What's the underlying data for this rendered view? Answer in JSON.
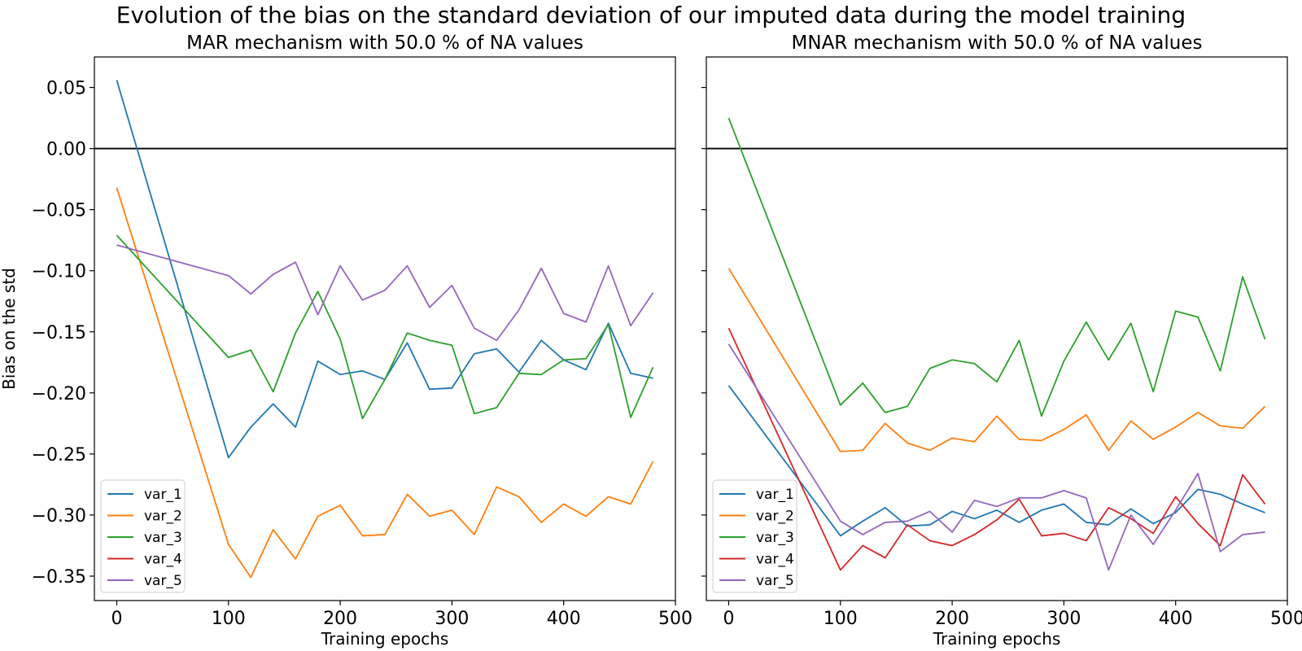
{
  "figure": {
    "suptitle": "Evolution of the bias on the standard deviation of our imputed data during the model training"
  },
  "colors": {
    "var_1": "#1f77b4",
    "var_2": "#ff7f0e",
    "var_3": "#2ca02c",
    "var_4": "#d62728",
    "var_5": "#9467bd",
    "zero_line": "#000000"
  },
  "chart_data": [
    {
      "type": "line",
      "title": "MAR mechanism with 50.0 % of NA values",
      "xlabel": "Training epochs",
      "ylabel": "Bias on the std",
      "xlim": [
        -20,
        500
      ],
      "ylim": [
        -0.37,
        0.075
      ],
      "xticks": [
        0,
        100,
        200,
        300,
        400,
        500
      ],
      "yticks": [
        0.05,
        0.0,
        -0.05,
        -0.1,
        -0.15,
        -0.2,
        -0.25,
        -0.3,
        -0.35
      ],
      "yticklabels": [
        "0.05",
        "0.00",
        "−0.05",
        "−0.10",
        "−0.15",
        "−0.20",
        "−0.25",
        "−0.30",
        "−0.35"
      ],
      "hline": 0.0,
      "grid": false,
      "legend": "lower-left",
      "series": [
        {
          "name": "var_1",
          "x": [
            0,
            100,
            120,
            140,
            160,
            180,
            200,
            220,
            240,
            260,
            280,
            300,
            320,
            340,
            360,
            380,
            400,
            420,
            440,
            460,
            480
          ],
          "values": [
            0.056,
            -0.253,
            -0.228,
            -0.209,
            -0.228,
            -0.174,
            -0.185,
            -0.182,
            -0.189,
            -0.159,
            -0.197,
            -0.196,
            -0.168,
            -0.164,
            -0.183,
            -0.157,
            -0.173,
            -0.181,
            -0.143,
            -0.184,
            -0.188
          ]
        },
        {
          "name": "var_2",
          "x": [
            0,
            100,
            120,
            140,
            160,
            180,
            200,
            220,
            240,
            260,
            280,
            300,
            320,
            340,
            360,
            380,
            400,
            420,
            440,
            460,
            480
          ],
          "values": [
            -0.032,
            -0.324,
            -0.351,
            -0.312,
            -0.336,
            -0.301,
            -0.292,
            -0.317,
            -0.316,
            -0.283,
            -0.301,
            -0.296,
            -0.316,
            -0.277,
            -0.285,
            -0.306,
            -0.291,
            -0.301,
            -0.285,
            -0.291,
            -0.256
          ]
        },
        {
          "name": "var_3",
          "x": [
            0,
            100,
            120,
            140,
            160,
            180,
            200,
            220,
            240,
            260,
            280,
            300,
            320,
            340,
            360,
            380,
            400,
            420,
            440,
            460,
            480
          ],
          "values": [
            -0.071,
            -0.171,
            -0.165,
            -0.199,
            -0.151,
            -0.117,
            -0.156,
            -0.221,
            -0.189,
            -0.151,
            -0.157,
            -0.161,
            -0.217,
            -0.212,
            -0.184,
            -0.185,
            -0.173,
            -0.172,
            -0.144,
            -0.22,
            -0.179
          ]
        },
        {
          "name": "var_4",
          "x": [],
          "values": []
        },
        {
          "name": "var_5",
          "x": [
            0,
            100,
            120,
            140,
            160,
            180,
            200,
            220,
            240,
            260,
            280,
            300,
            320,
            340,
            360,
            380,
            400,
            420,
            440,
            460,
            480
          ],
          "values": [
            -0.079,
            -0.104,
            -0.119,
            -0.103,
            -0.093,
            -0.136,
            -0.096,
            -0.124,
            -0.116,
            -0.096,
            -0.13,
            -0.112,
            -0.147,
            -0.157,
            -0.132,
            -0.098,
            -0.135,
            -0.142,
            -0.096,
            -0.145,
            -0.118
          ]
        }
      ]
    },
    {
      "type": "line",
      "title": "MNAR mechanism with 50.0 % of NA values",
      "xlabel": "Training epochs",
      "ylabel": "",
      "xlim": [
        -20,
        500
      ],
      "ylim": [
        -0.37,
        0.075
      ],
      "xticks": [
        0,
        100,
        200,
        300,
        400,
        500
      ],
      "yticks": [
        0.05,
        0.0,
        -0.05,
        -0.1,
        -0.15,
        -0.2,
        -0.25,
        -0.3,
        -0.35
      ],
      "yticklabels": [],
      "hline": 0.0,
      "grid": false,
      "legend": "lower-left",
      "series": [
        {
          "name": "var_1",
          "x": [
            0,
            100,
            120,
            140,
            160,
            180,
            200,
            220,
            240,
            260,
            280,
            300,
            320,
            340,
            360,
            380,
            400,
            420,
            440,
            460,
            480
          ],
          "values": [
            -0.194,
            -0.317,
            -0.305,
            -0.294,
            -0.309,
            -0.308,
            -0.297,
            -0.303,
            -0.296,
            -0.306,
            -0.296,
            -0.291,
            -0.306,
            -0.308,
            -0.295,
            -0.307,
            -0.298,
            -0.279,
            -0.283,
            -0.291,
            -0.298
          ]
        },
        {
          "name": "var_2",
          "x": [
            0,
            100,
            120,
            140,
            160,
            180,
            200,
            220,
            240,
            260,
            280,
            300,
            320,
            340,
            360,
            380,
            400,
            420,
            440,
            460,
            480
          ],
          "values": [
            -0.098,
            -0.248,
            -0.247,
            -0.225,
            -0.241,
            -0.247,
            -0.237,
            -0.24,
            -0.219,
            -0.238,
            -0.239,
            -0.23,
            -0.218,
            -0.247,
            -0.223,
            -0.238,
            -0.228,
            -0.216,
            -0.227,
            -0.229,
            -0.211
          ]
        },
        {
          "name": "var_3",
          "x": [
            0,
            100,
            120,
            140,
            160,
            180,
            200,
            220,
            240,
            260,
            280,
            300,
            320,
            340,
            360,
            380,
            400,
            420,
            440,
            460,
            480
          ],
          "values": [
            0.025,
            -0.21,
            -0.192,
            -0.216,
            -0.211,
            -0.18,
            -0.173,
            -0.176,
            -0.191,
            -0.157,
            -0.219,
            -0.174,
            -0.142,
            -0.173,
            -0.143,
            -0.199,
            -0.133,
            -0.138,
            -0.182,
            -0.105,
            -0.156
          ]
        },
        {
          "name": "var_4",
          "x": [
            0,
            100,
            120,
            140,
            160,
            180,
            200,
            220,
            240,
            260,
            280,
            300,
            320,
            340,
            360,
            380,
            400,
            420,
            440,
            460,
            480
          ],
          "values": [
            -0.147,
            -0.345,
            -0.325,
            -0.335,
            -0.308,
            -0.321,
            -0.325,
            -0.316,
            -0.304,
            -0.287,
            -0.317,
            -0.315,
            -0.321,
            -0.294,
            -0.303,
            -0.315,
            -0.285,
            -0.307,
            -0.325,
            -0.267,
            -0.291
          ]
        },
        {
          "name": "var_5",
          "x": [
            0,
            100,
            120,
            140,
            160,
            180,
            200,
            220,
            240,
            260,
            280,
            300,
            320,
            340,
            360,
            380,
            400,
            420,
            440,
            460,
            480
          ],
          "values": [
            -0.16,
            -0.305,
            -0.316,
            -0.306,
            -0.305,
            -0.297,
            -0.314,
            -0.288,
            -0.293,
            -0.286,
            -0.286,
            -0.28,
            -0.286,
            -0.345,
            -0.3,
            -0.324,
            -0.296,
            -0.266,
            -0.33,
            -0.316,
            -0.314
          ]
        }
      ]
    }
  ]
}
